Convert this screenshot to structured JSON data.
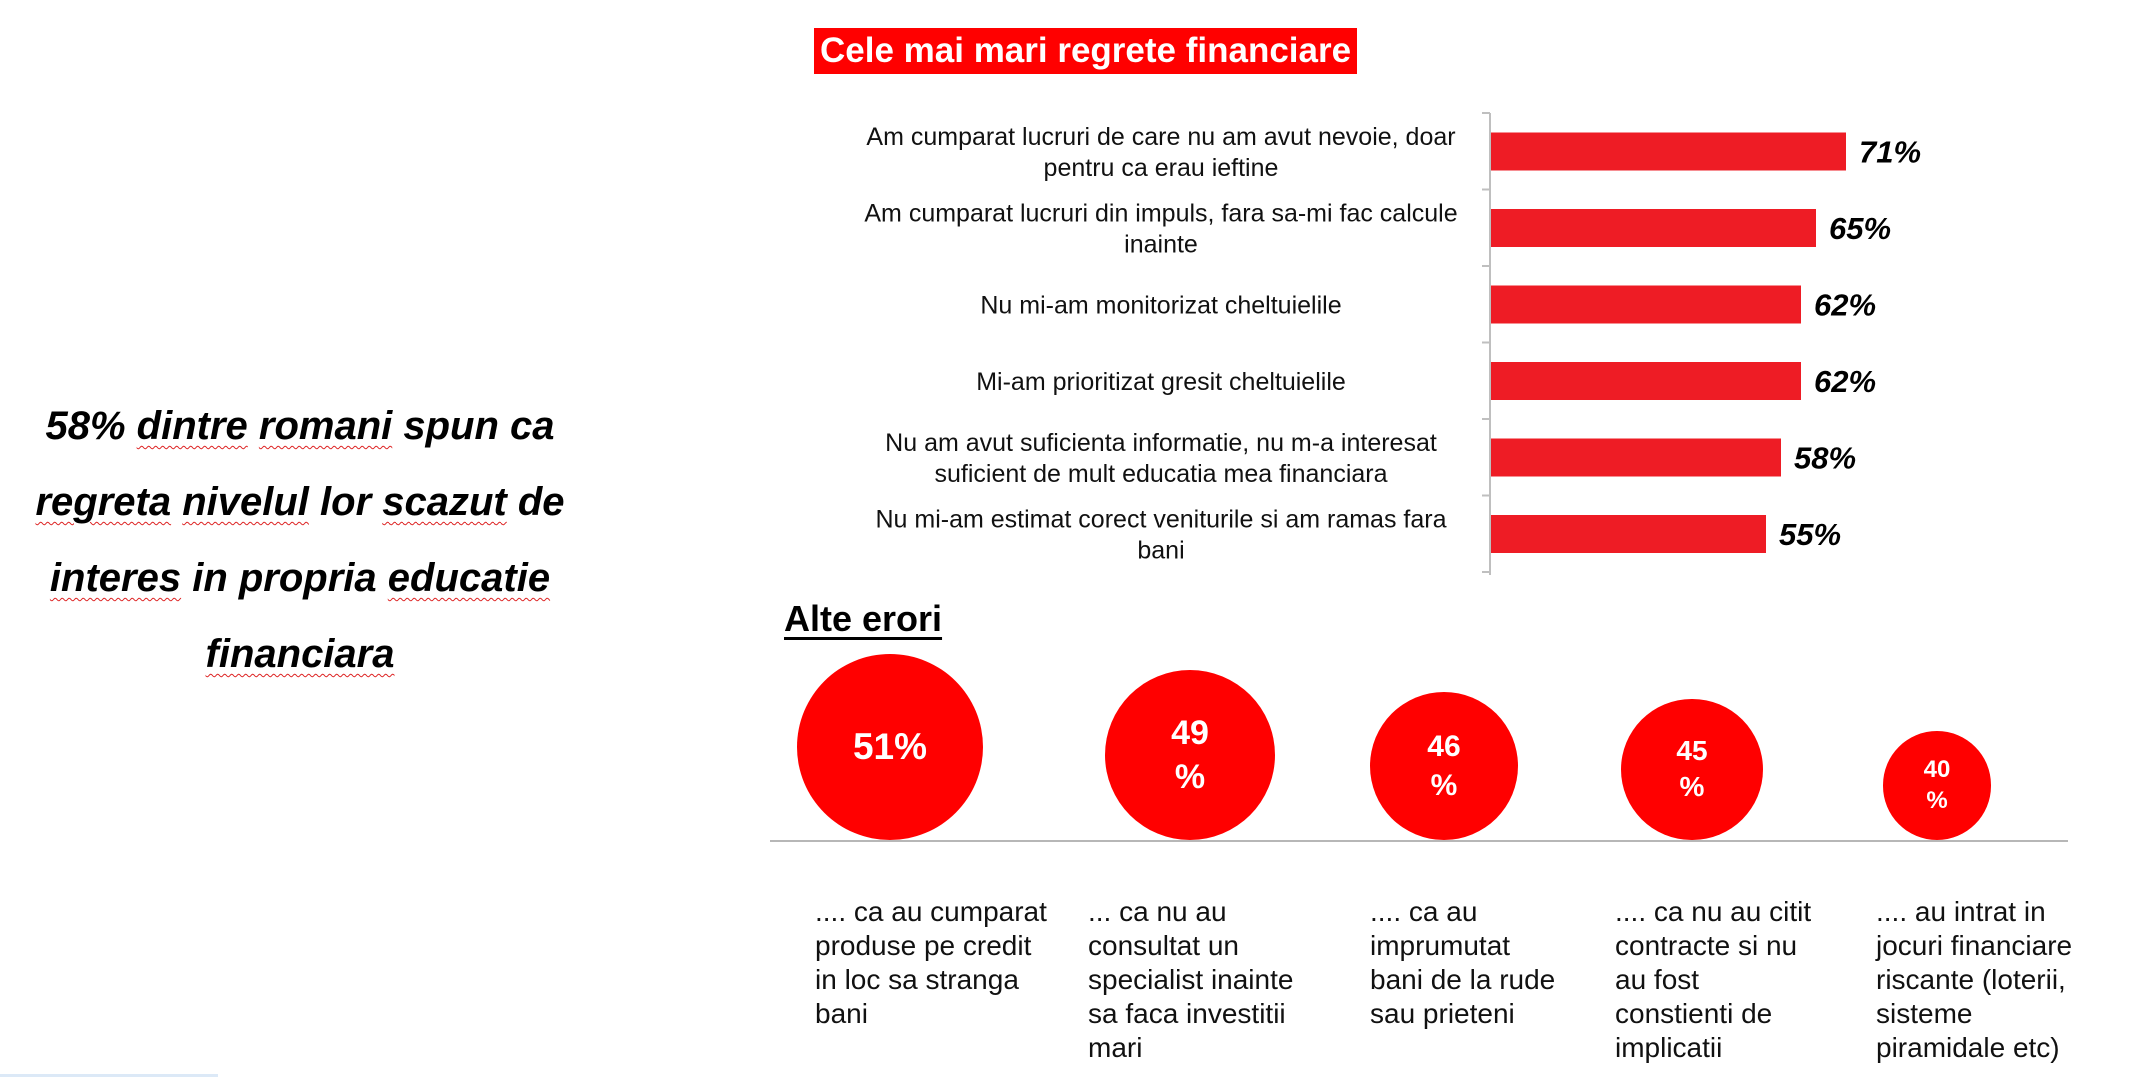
{
  "headline": {
    "lines": [
      [
        "58% ",
        {
          "u": "dintre"
        },
        " ",
        {
          "u": "romani"
        },
        " spun ca"
      ],
      [
        {
          "u": "regreta"
        },
        " ",
        {
          "u": "nivelul"
        },
        " lor ",
        {
          "u": "scazut"
        },
        " de"
      ],
      [
        {
          "u": "interes"
        },
        " in propria ",
        {
          "u": "educatie"
        }
      ],
      [
        {
          "u": "financiara"
        }
      ]
    ]
  },
  "chart_data": [
    {
      "type": "bar",
      "orientation": "horizontal",
      "title": "Cele mai mari regrete financiare",
      "categories": [
        "Am cumparat lucruri de care nu am avut nevoie, doar pentru ca erau ieftine",
        "Am cumparat lucruri din impuls, fara sa-mi fac calcule inainte",
        "Nu mi-am monitorizat cheltuielile",
        "Mi-am prioritizat gresit cheltuielile",
        "Nu am avut suficienta informatie, nu m-a interesat suficient de mult educatia mea financiara",
        "Nu mi-am estimat corect veniturile si am ramas fara bani"
      ],
      "category_lines": [
        [
          "Am cumparat lucruri de care nu am avut nevoie, doar",
          "pentru ca erau ieftine"
        ],
        [
          "Am cumparat lucruri din impuls, fara sa-mi fac calcule",
          "inainte"
        ],
        [
          "Nu mi-am monitorizat cheltuielile"
        ],
        [
          "Mi-am prioritizat gresit cheltuielile"
        ],
        [
          "Nu am avut suficienta informatie, nu m-a interesat",
          "suficient de mult educatia mea financiara"
        ],
        [
          "Nu mi-am estimat corect veniturile si am ramas fara",
          "bani"
        ]
      ],
      "values": [
        71,
        65,
        62,
        62,
        58,
        55
      ],
      "value_labels": [
        "71%",
        "65%",
        "62%",
        "62%",
        "58%",
        "55%"
      ],
      "bar_color": "#ee1c25"
    },
    {
      "type": "bubble",
      "title": "Alte erori",
      "values": [
        51,
        49,
        46,
        45,
        40
      ],
      "value_label_lines": [
        [
          "51%"
        ],
        [
          "49",
          "%"
        ],
        [
          "46",
          "%"
        ],
        [
          "45",
          "%"
        ],
        [
          "40",
          "%"
        ]
      ],
      "captions": [
        [
          ".... ca au cumparat",
          "produse pe credit",
          "in loc sa stranga",
          "bani"
        ],
        [
          "... ca nu au",
          "consultat un",
          "specialist inainte",
          "sa faca investitii",
          "mari"
        ],
        [
          ".... ca au",
          "imprumutat",
          "bani de la rude",
          "sau prieteni"
        ],
        [
          ".... ca nu au citit",
          "contracte si nu",
          "au fost",
          "constienti de",
          "implicatii"
        ],
        [
          ".... au intrat in",
          "jocuri financiare",
          "riscante (loterii,",
          "sisteme",
          "piramidale etc)"
        ]
      ],
      "bubble_color": "#ff0000"
    }
  ]
}
